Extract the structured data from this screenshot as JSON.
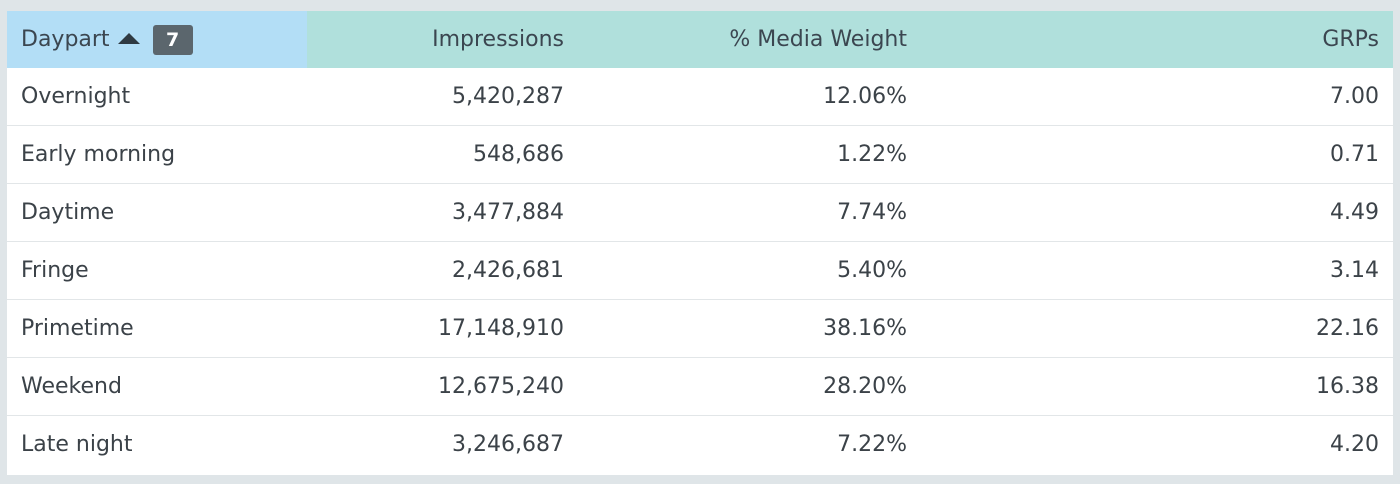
{
  "table": {
    "headers": {
      "daypart": "Daypart",
      "impressions": "Impressions",
      "media_weight": "% Media Weight",
      "grps": "GRPs"
    },
    "sort": {
      "column": "daypart",
      "direction": "ascending",
      "icon": "sort-ascending-icon"
    },
    "row_count_badge": "7",
    "rows": [
      {
        "daypart": "Overnight",
        "impressions": "5,420,287",
        "media_weight": "12.06%",
        "grps": "7.00"
      },
      {
        "daypart": "Early morning",
        "impressions": "548,686",
        "media_weight": "1.22%",
        "grps": "0.71"
      },
      {
        "daypart": "Daytime",
        "impressions": "3,477,884",
        "media_weight": "7.74%",
        "grps": "4.49"
      },
      {
        "daypart": "Fringe",
        "impressions": "2,426,681",
        "media_weight": "5.40%",
        "grps": "3.14"
      },
      {
        "daypart": "Primetime",
        "impressions": "17,148,910",
        "media_weight": "38.16%",
        "grps": "22.16"
      },
      {
        "daypart": "Weekend",
        "impressions": "12,675,240",
        "media_weight": "28.20%",
        "grps": "16.38"
      },
      {
        "daypart": "Late night",
        "impressions": "3,246,687",
        "media_weight": "7.22%",
        "grps": "4.20"
      }
    ]
  },
  "colors": {
    "page_background": "#dfe5e8",
    "header_background": "#b0e0dc",
    "sorted_header_background": "#b3def6",
    "badge_background": "#5b666d",
    "text": "#3b4248"
  }
}
